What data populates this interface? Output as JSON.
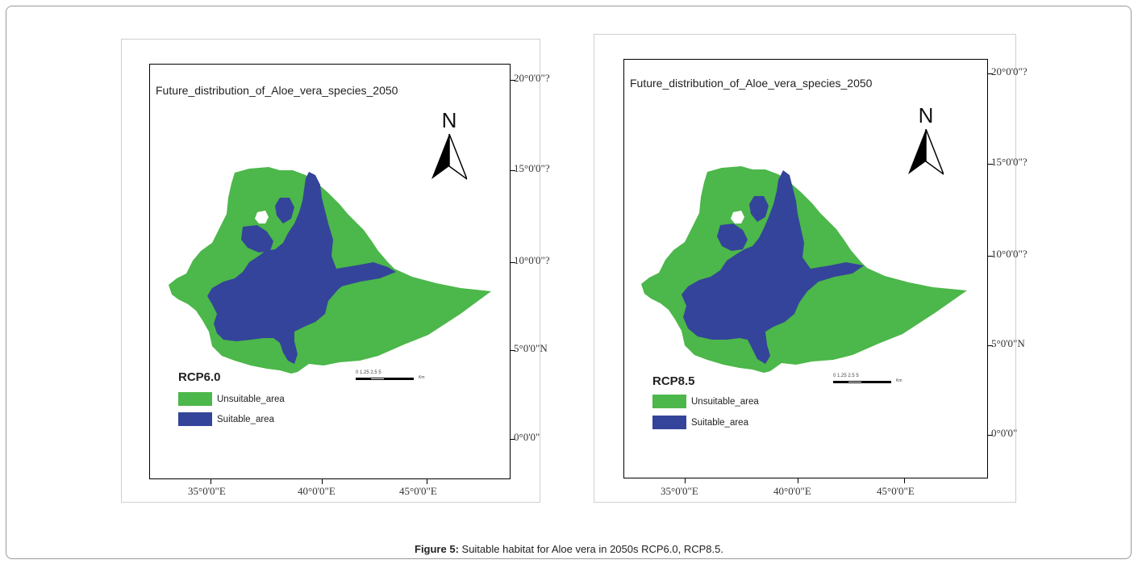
{
  "figure": {
    "caption_label": "Figure 5:",
    "caption_text": " Suitable habitat for Aloe vera in 2050s RCP6.0, RCP8.5."
  },
  "colors": {
    "unsuitable": "#4cb74a",
    "suitable": "#34449a",
    "background": "#ffffff"
  },
  "maps": [
    {
      "title": "Future_distribution_of_Aloe_vera_species_2050",
      "north_label": "N",
      "scenario": "RCP6.0",
      "legend": [
        {
          "label": "Unsuitable_area",
          "color": "#4cb74a"
        },
        {
          "label": "Suitable_area",
          "color": "#34449a"
        }
      ],
      "lat_labels": [
        "20°0'0\"?",
        "15°0'0\"?",
        "10°0'0\"?",
        "5°0'0\"N",
        "0°0'0\""
      ],
      "lon_labels": [
        "35°0'0\"E",
        "40°0'0\"E",
        "45°0'0\"E"
      ],
      "scale_text": "0  1.25 2.5         5",
      "scale_unit": "Km"
    },
    {
      "title": "Future_distribution_of_Aloe_vera_species_2050",
      "north_label": "N",
      "scenario": "RCP8.5",
      "legend": [
        {
          "label": "Unsuitable_area",
          "color": "#4cb74a"
        },
        {
          "label": "Suitable_area",
          "color": "#34449a"
        }
      ],
      "lat_labels": [
        "20°0'0\"?",
        "15°0'0\"?",
        "10°0'0\"?",
        "5°0'0\"N",
        "0°0'0\""
      ],
      "lon_labels": [
        "35°0'0\"E",
        "40°0'0\"E",
        "45°0'0\"E"
      ],
      "scale_text": "0  1.25 2.5         5",
      "scale_unit": "Km"
    }
  ]
}
